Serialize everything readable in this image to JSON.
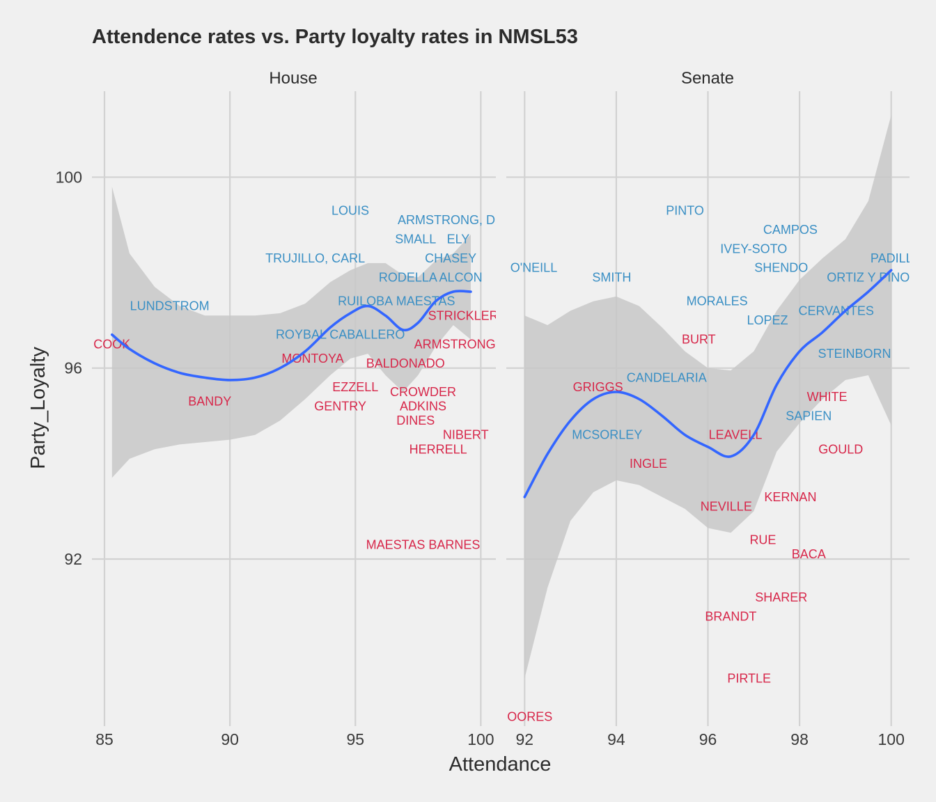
{
  "chart_data": {
    "type": "scatter",
    "title": "Attendence rates vs. Party loyalty rates in NMSL53",
    "xlabel": "Attendance",
    "ylabel": "Party_Loyalty",
    "ylim": [
      88.5,
      101.8
    ],
    "yticks": [
      92,
      96,
      100
    ],
    "grid": true,
    "colors": {
      "blue": "#3a8fc4",
      "red": "#d7274a",
      "smooth": "#3366ff",
      "ribbon": "#c8c8c8"
    },
    "panels": [
      {
        "name": "House",
        "xlim": [
          84.5,
          100.6
        ],
        "xticks": [
          85,
          90,
          95,
          100
        ],
        "points": [
          {
            "label": "LOUIS",
            "x": 94.8,
            "y": 99.3,
            "party": "blue"
          },
          {
            "label": "ARMSTRONG, D.",
            "x": 98.7,
            "y": 99.1,
            "party": "blue"
          },
          {
            "label": "SMALL",
            "x": 97.4,
            "y": 98.7,
            "party": "blue"
          },
          {
            "label": "ELY",
            "x": 99.1,
            "y": 98.7,
            "party": "blue"
          },
          {
            "label": "TRUJILLO, CARL",
            "x": 93.4,
            "y": 98.3,
            "party": "blue"
          },
          {
            "label": "CHASEY",
            "x": 98.8,
            "y": 98.3,
            "party": "blue"
          },
          {
            "label": "RODELLA",
            "x": 97.1,
            "y": 97.9,
            "party": "blue"
          },
          {
            "label": "ALCON",
            "x": 99.2,
            "y": 97.9,
            "party": "blue"
          },
          {
            "label": "LUNDSTROM",
            "x": 87.6,
            "y": 97.3,
            "party": "blue"
          },
          {
            "label": "RUILOBA",
            "x": 95.4,
            "y": 97.4,
            "party": "blue"
          },
          {
            "label": "MAESTAS",
            "x": 97.8,
            "y": 97.4,
            "party": "blue"
          },
          {
            "label": "ROYBAL CABALLERO",
            "x": 94.4,
            "y": 96.7,
            "party": "blue"
          },
          {
            "label": "STRICKLER",
            "x": 99.3,
            "y": 97.1,
            "party": "red"
          },
          {
            "label": "COOK",
            "x": 85.3,
            "y": 96.5,
            "party": "red"
          },
          {
            "label": "ARMSTRONG, G",
            "x": 99.3,
            "y": 96.5,
            "party": "red"
          },
          {
            "label": "MONTOYA",
            "x": 93.3,
            "y": 96.2,
            "party": "red"
          },
          {
            "label": "BALDONADO",
            "x": 97.0,
            "y": 96.1,
            "party": "red"
          },
          {
            "label": "BANDY",
            "x": 89.2,
            "y": 95.3,
            "party": "red"
          },
          {
            "label": "EZZELL",
            "x": 95.0,
            "y": 95.6,
            "party": "red"
          },
          {
            "label": "CROWDER",
            "x": 97.7,
            "y": 95.5,
            "party": "red"
          },
          {
            "label": "GENTRY",
            "x": 94.4,
            "y": 95.2,
            "party": "red"
          },
          {
            "label": "ADKINS",
            "x": 97.7,
            "y": 95.2,
            "party": "red"
          },
          {
            "label": "DINES",
            "x": 97.4,
            "y": 94.9,
            "party": "red"
          },
          {
            "label": "NIBERT",
            "x": 99.4,
            "y": 94.6,
            "party": "red"
          },
          {
            "label": "HERRELL",
            "x": 98.3,
            "y": 94.3,
            "party": "red"
          },
          {
            "label": "MAESTAS BARNES",
            "x": 97.7,
            "y": 92.3,
            "party": "red"
          }
        ],
        "smooth": {
          "x": [
            85.3,
            86,
            87,
            88,
            89,
            90,
            91,
            92,
            93,
            94,
            94.8,
            95.5,
            96.2,
            96.9,
            97.5,
            98.2,
            98.9,
            99.6
          ],
          "y": [
            96.7,
            96.4,
            96.1,
            95.9,
            95.8,
            95.75,
            95.8,
            96.0,
            96.35,
            96.85,
            97.15,
            97.3,
            97.1,
            96.8,
            96.95,
            97.4,
            97.6,
            97.6
          ],
          "lower": [
            93.7,
            94.1,
            94.3,
            94.4,
            94.45,
            94.5,
            94.6,
            94.9,
            95.35,
            95.85,
            96.2,
            96.3,
            95.85,
            95.5,
            95.85,
            96.45,
            96.9,
            96.6
          ],
          "upper": [
            99.8,
            98.4,
            97.7,
            97.3,
            97.1,
            97.1,
            97.1,
            97.15,
            97.35,
            97.8,
            98.05,
            98.2,
            98.2,
            97.95,
            97.9,
            98.25,
            98.4,
            98.8
          ]
        }
      },
      {
        "name": "Senate",
        "xlim": [
          91.6,
          100.4
        ],
        "xticks": [
          92,
          94,
          96,
          98,
          100
        ],
        "points": [
          {
            "label": "PINTO",
            "x": 95.5,
            "y": 99.3,
            "party": "blue"
          },
          {
            "label": "CAMPOS",
            "x": 97.8,
            "y": 98.9,
            "party": "blue"
          },
          {
            "label": "IVEY-SOTO",
            "x": 97.0,
            "y": 98.5,
            "party": "blue"
          },
          {
            "label": "PADILLA",
            "x": 100.1,
            "y": 98.3,
            "party": "blue"
          },
          {
            "label": "O'NEILL",
            "x": 92.2,
            "y": 98.1,
            "party": "blue"
          },
          {
            "label": "SHENDO",
            "x": 97.6,
            "y": 98.1,
            "party": "blue"
          },
          {
            "label": "SMITH",
            "x": 93.9,
            "y": 97.9,
            "party": "blue"
          },
          {
            "label": "ORTIZ Y PINO",
            "x": 99.5,
            "y": 97.9,
            "party": "blue"
          },
          {
            "label": "MORALES",
            "x": 96.2,
            "y": 97.4,
            "party": "blue"
          },
          {
            "label": "CERVANTES",
            "x": 98.8,
            "y": 97.2,
            "party": "blue"
          },
          {
            "label": "LOPEZ",
            "x": 97.3,
            "y": 97.0,
            "party": "blue"
          },
          {
            "label": "STEINBORN",
            "x": 99.2,
            "y": 96.3,
            "party": "blue"
          },
          {
            "label": "CANDELARIA",
            "x": 95.1,
            "y": 95.8,
            "party": "blue"
          },
          {
            "label": "SAPIEN",
            "x": 98.2,
            "y": 95.0,
            "party": "blue"
          },
          {
            "label": "MCSORLEY",
            "x": 93.8,
            "y": 94.6,
            "party": "blue"
          },
          {
            "label": "BURT",
            "x": 95.8,
            "y": 96.6,
            "party": "red"
          },
          {
            "label": "GRIGGS",
            "x": 93.6,
            "y": 95.6,
            "party": "red"
          },
          {
            "label": "WHITE",
            "x": 98.6,
            "y": 95.4,
            "party": "red"
          },
          {
            "label": "LEAVELL",
            "x": 96.6,
            "y": 94.6,
            "party": "red"
          },
          {
            "label": "GOULD",
            "x": 98.9,
            "y": 94.3,
            "party": "red"
          },
          {
            "label": "INGLE",
            "x": 94.7,
            "y": 94.0,
            "party": "red"
          },
          {
            "label": "KERNAN",
            "x": 97.8,
            "y": 93.3,
            "party": "red"
          },
          {
            "label": "NEVILLE",
            "x": 96.4,
            "y": 93.1,
            "party": "red"
          },
          {
            "label": "RUE",
            "x": 97.2,
            "y": 92.4,
            "party": "red"
          },
          {
            "label": "BACA",
            "x": 98.2,
            "y": 92.1,
            "party": "red"
          },
          {
            "label": "SHARER",
            "x": 97.6,
            "y": 91.2,
            "party": "red"
          },
          {
            "label": "BRANDT",
            "x": 96.5,
            "y": 90.8,
            "party": "red"
          },
          {
            "label": "PIRTLE",
            "x": 96.9,
            "y": 89.5,
            "party": "red"
          },
          {
            "label": "MOORES",
            "x": 92.0,
            "y": 88.7,
            "party": "red"
          }
        ],
        "smooth": {
          "x": [
            92.0,
            92.5,
            93.0,
            93.5,
            94.0,
            94.5,
            95.0,
            95.5,
            96.0,
            96.5,
            97.0,
            97.5,
            98.0,
            98.5,
            99.0,
            99.5,
            100.0
          ],
          "y": [
            93.3,
            94.2,
            94.9,
            95.35,
            95.5,
            95.35,
            95.0,
            94.6,
            94.35,
            94.15,
            94.6,
            95.65,
            96.35,
            96.75,
            97.2,
            97.6,
            98.05
          ],
          "lower": [
            89.5,
            91.4,
            92.8,
            93.4,
            93.65,
            93.55,
            93.3,
            93.05,
            92.65,
            92.55,
            93.0,
            94.25,
            94.85,
            95.35,
            95.75,
            95.85,
            94.8
          ],
          "upper": [
            97.1,
            96.9,
            97.2,
            97.4,
            97.5,
            97.3,
            96.85,
            96.35,
            96.0,
            95.95,
            96.35,
            97.2,
            97.85,
            98.3,
            98.7,
            99.5,
            101.3
          ]
        }
      }
    ]
  }
}
